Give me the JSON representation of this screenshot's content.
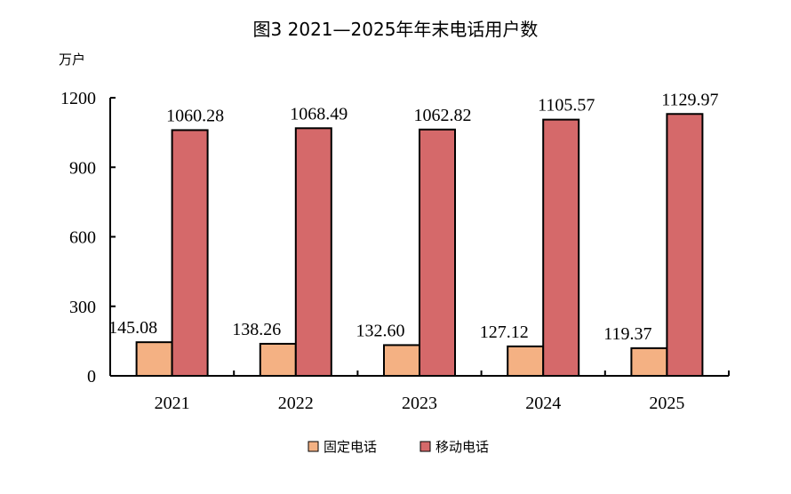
{
  "chart_data": {
    "type": "bar",
    "title": "图3  2021—2025年年末电话用户数",
    "ylabel": "万户",
    "xlabel": "",
    "categories": [
      "2021",
      "2022",
      "2023",
      "2024",
      "2025"
    ],
    "series": [
      {
        "name": "固定电话",
        "color": "#F4B183",
        "values": [
          145.08,
          138.26,
          132.6,
          127.12,
          119.37
        ],
        "labels": [
          "145.08",
          "138.26",
          "132.60",
          "127.12",
          "119.37"
        ]
      },
      {
        "name": "移动电话",
        "color": "#D5696A",
        "values": [
          1060.28,
          1068.49,
          1062.82,
          1105.57,
          1129.97
        ],
        "labels": [
          "1060.28",
          "1068.49",
          "1062.82",
          "1105.57",
          "1129.97"
        ]
      }
    ],
    "ylim": [
      0,
      1200
    ],
    "yticks": [
      0,
      300,
      600,
      900,
      1200
    ],
    "grid": false,
    "legend": "bottom"
  }
}
